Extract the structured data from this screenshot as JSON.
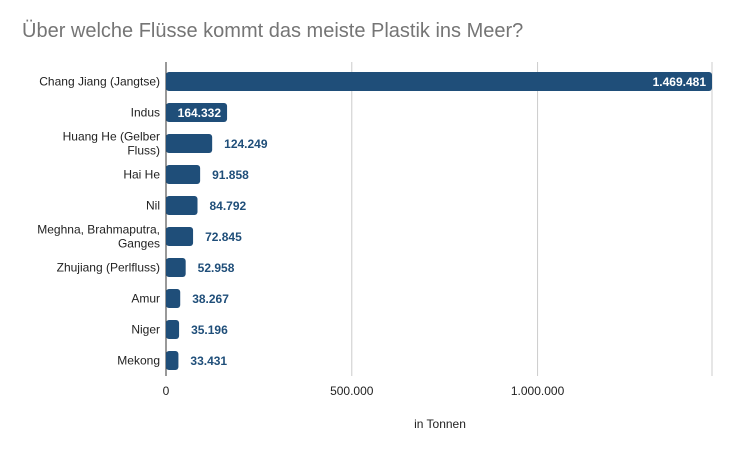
{
  "chart_data": {
    "type": "bar",
    "orientation": "horizontal",
    "title": "Über welche Flüsse kommt das meiste Plastik ins Meer?",
    "xlabel": "in Tonnen",
    "ylabel": "",
    "xlim": [
      0,
      1469481
    ],
    "x_ticks": [
      {
        "value": 0,
        "label": "0"
      },
      {
        "value": 500000,
        "label": "500.000"
      },
      {
        "value": 1000000,
        "label": "1.000.000"
      }
    ],
    "grid": true,
    "bar_color": "#1f4e79",
    "label_color_inside": "#ffffff",
    "label_color_outside": "#1f4e79",
    "categories": [
      [
        "Chang Jiang (Jangtse)"
      ],
      [
        "Indus"
      ],
      [
        "Huang He (Gelber",
        "Fluss)"
      ],
      [
        "Hai He"
      ],
      [
        "Nil"
      ],
      [
        "Meghna, Brahmaputra,",
        "Ganges"
      ],
      [
        "Zhujiang (Perlfluss)"
      ],
      [
        "Amur"
      ],
      [
        "Niger"
      ],
      [
        "Mekong"
      ]
    ],
    "values": [
      1469481,
      164332,
      124249,
      91858,
      84792,
      72845,
      52958,
      38267,
      35196,
      33431
    ],
    "value_labels": [
      "1.469.481",
      "164.332",
      "124.249",
      "91.858",
      "84.792",
      "72.845",
      "52.958",
      "38.267",
      "35.196",
      "33.431"
    ]
  }
}
